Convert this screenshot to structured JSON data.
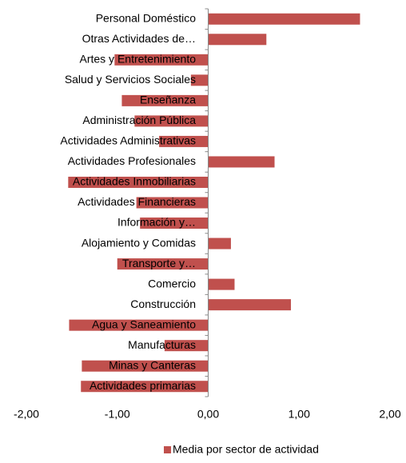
{
  "chart_data": {
    "type": "bar",
    "orientation": "horizontal",
    "categories": [
      "Personal Doméstico",
      "Otras Actividades de…",
      "Artes y Entretenimiento",
      "Salud y Servicios Sociales",
      "Enseñanza",
      "Administración Pública",
      "Actividades Administrativas",
      "Actividades Profesionales",
      "Actividades Inmobiliarias",
      "Actividades Financieras",
      "Información y…",
      "Alojamiento y Comidas",
      "Transporte y…",
      "Comercio",
      "Construcción",
      "Agua y Saneamiento",
      "Manufacturas",
      "Minas y Canteras",
      "Actividades primarias"
    ],
    "series": [
      {
        "name": "Media por sector de actividad",
        "color": "#c0504d",
        "values": [
          1.67,
          0.64,
          -1.03,
          -0.19,
          -0.95,
          -0.81,
          -0.54,
          0.73,
          -1.54,
          -0.79,
          -0.75,
          0.25,
          -1.0,
          0.29,
          0.91,
          -1.53,
          -0.48,
          -1.39,
          -1.4
        ]
      }
    ],
    "xlim": [
      -2,
      2
    ],
    "xticks": [
      {
        "value": -2,
        "label": "-2,00"
      },
      {
        "value": -1,
        "label": "-1,00"
      },
      {
        "value": 0,
        "label": "0,00"
      },
      {
        "value": 1,
        "label": "1,00"
      },
      {
        "value": 2,
        "label": "2,00"
      }
    ],
    "legend": "bottom"
  }
}
